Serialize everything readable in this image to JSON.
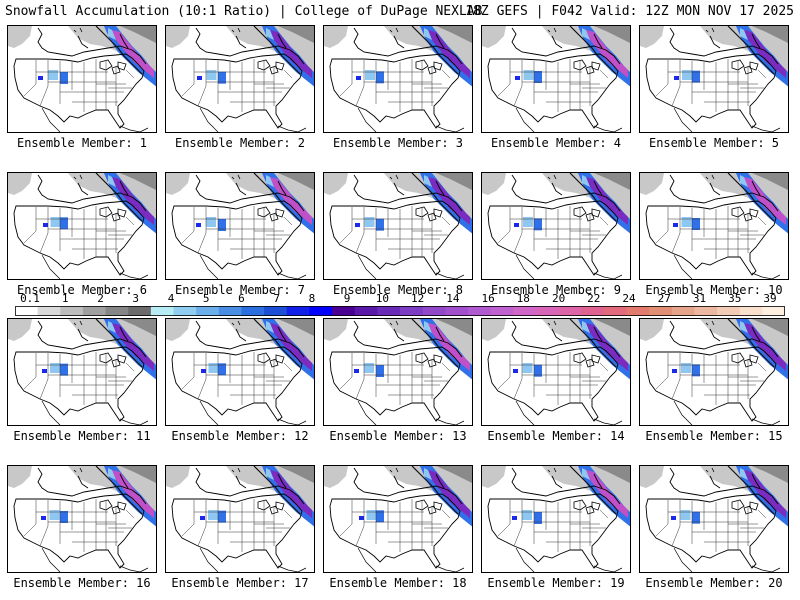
{
  "header": {
    "left": "Snowfall Accumulation (10:1 Ratio) | College of DuPage NEXLAB",
    "right": "18Z GEFS | F042 Valid: 12Z MON NOV 17 2025"
  },
  "label_prefix": "Ensemble Member: ",
  "members": [
    "1",
    "2",
    "3",
    "4",
    "5",
    "6",
    "7",
    "8",
    "9",
    "10",
    "11",
    "12",
    "13",
    "14",
    "15",
    "16",
    "17",
    "18",
    "19",
    "20"
  ],
  "colorbar": {
    "labels": [
      "0.1",
      "1",
      "2",
      "3",
      "4",
      "5",
      "6",
      "7",
      "8",
      "9",
      "10",
      "12",
      "14",
      "16",
      "18",
      "20",
      "22",
      "24",
      "27",
      "31",
      "35",
      "39"
    ],
    "colors": [
      "#ffffff",
      "#d9d9d9",
      "#bdbdbd",
      "#a0a0a0",
      "#868686",
      "#6b6b6b",
      "#b8ecf4",
      "#90cdf0",
      "#6caeea",
      "#4a8ee4",
      "#2a6ee0",
      "#1c4ed6",
      "#1020e8",
      "#0000ff",
      "#4b0094",
      "#5a18a8",
      "#6a2ab8",
      "#7d3cc4",
      "#9048c8",
      "#a14fcc",
      "#b05ad0",
      "#c061d0",
      "#cf66c8",
      "#d866b8",
      "#dd64a6",
      "#e06290",
      "#e26a7c",
      "#e27a6e",
      "#e08e74",
      "#e6a48a",
      "#ecb8a0",
      "#f2ccb6",
      "#f8e0cc",
      "#fdf0e0"
    ]
  },
  "snow_colors": {
    "gray": "#c8c8c8",
    "dark_gray": "#8a8a8a",
    "light_blue": "#8ec8f2",
    "blue": "#3070e8",
    "deep_blue": "#1a2ae8",
    "purple": "#7a2cc0",
    "magenta": "#c050c8"
  }
}
